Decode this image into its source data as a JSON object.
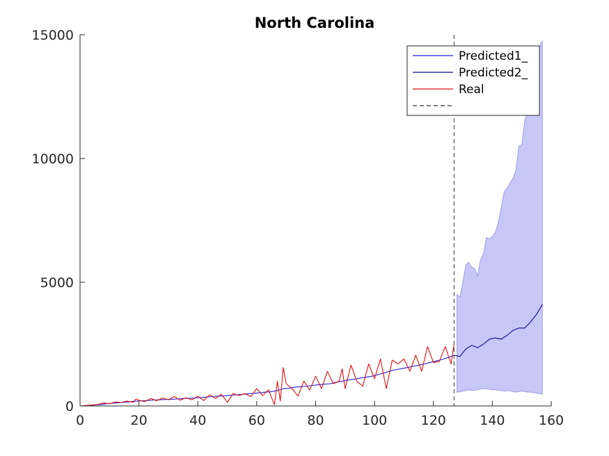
{
  "chart_data": {
    "type": "line",
    "title": "North Carolina",
    "xlabel": "",
    "ylabel": "",
    "xlim": [
      0,
      160
    ],
    "ylim": [
      0,
      15000
    ],
    "xticks": [
      "0",
      "20",
      "40",
      "60",
      "80",
      "100",
      "120",
      "140",
      "160"
    ],
    "yticks": [
      "0",
      "5000",
      "10000",
      "15000"
    ],
    "grid": false,
    "legend_position": "top-right",
    "vline_x": 127,
    "colors": {
      "predicted1": "#1f1fd6",
      "predicted2": "#0b0b8a",
      "real": "#e01010",
      "band_fill": "#c8c8f8",
      "band_edge": "#9a9ae6",
      "vline": "#333333"
    },
    "series": [
      {
        "name": "Predicted1_",
        "style": "line",
        "x": [
          1,
          3,
          5,
          7,
          9,
          11,
          13,
          15,
          17,
          19,
          21,
          23,
          25,
          27,
          29,
          31,
          33,
          35,
          37,
          39,
          41,
          43,
          45,
          47,
          49,
          51,
          53,
          55,
          57,
          59,
          61,
          63,
          65,
          67,
          69,
          71,
          73,
          75,
          77,
          79,
          81,
          83,
          85,
          87,
          89,
          91,
          93,
          95,
          97,
          99,
          101,
          103,
          105,
          107,
          109,
          111,
          113,
          115,
          117,
          119,
          121,
          123,
          125,
          127
        ],
        "values": [
          10,
          20,
          40,
          60,
          90,
          110,
          130,
          150,
          170,
          190,
          210,
          220,
          240,
          250,
          260,
          270,
          280,
          300,
          310,
          320,
          340,
          360,
          380,
          400,
          410,
          430,
          450,
          470,
          490,
          510,
          530,
          560,
          580,
          620,
          700,
          720,
          760,
          780,
          800,
          830,
          860,
          880,
          900,
          960,
          1000,
          1050,
          1080,
          1120,
          1160,
          1200,
          1260,
          1320,
          1400,
          1460,
          1500,
          1550,
          1600,
          1650,
          1700,
          1760,
          1820,
          1880,
          1960,
          2050
        ]
      },
      {
        "name": "Predicted2_",
        "style": "line",
        "x": [
          127,
          129,
          131,
          133,
          135,
          137,
          139,
          141,
          143,
          145,
          147,
          149,
          151,
          153,
          155,
          157
        ],
        "values": [
          2050,
          2000,
          2300,
          2450,
          2350,
          2500,
          2700,
          2750,
          2700,
          2850,
          3050,
          3150,
          3150,
          3400,
          3700,
          4100
        ]
      },
      {
        "name": "Real",
        "style": "line",
        "x": [
          0,
          2,
          4,
          6,
          8,
          10,
          12,
          14,
          16,
          18,
          19,
          20,
          22,
          24,
          26,
          28,
          30,
          32,
          34,
          36,
          38,
          40,
          42,
          44,
          46,
          48,
          50,
          52,
          54,
          56,
          58,
          60,
          62,
          64,
          66,
          67,
          68,
          69,
          70,
          72,
          74,
          76,
          78,
          80,
          82,
          84,
          86,
          88,
          89,
          90,
          92,
          94,
          96,
          98,
          100,
          102,
          104,
          106,
          108,
          110,
          112,
          114,
          116,
          118,
          120,
          122,
          124,
          126,
          127
        ],
        "values": [
          0,
          20,
          40,
          60,
          120,
          90,
          160,
          140,
          200,
          150,
          280,
          230,
          170,
          300,
          210,
          320,
          250,
          380,
          230,
          330,
          250,
          400,
          220,
          450,
          300,
          480,
          150,
          500,
          420,
          500,
          380,
          700,
          420,
          650,
          50,
          1000,
          200,
          1550,
          900,
          700,
          400,
          1000,
          650,
          1200,
          700,
          1400,
          900,
          1000,
          1500,
          700,
          1650,
          1000,
          800,
          1700,
          1100,
          1900,
          700,
          1850,
          1700,
          1900,
          1400,
          2050,
          1400,
          2400,
          1750,
          1800,
          2400,
          1700,
          2500
        ]
      }
    ],
    "uncertainty_band": {
      "x": [
        128,
        129,
        130,
        131,
        132,
        133,
        134,
        135,
        136,
        137,
        138,
        139,
        140,
        141,
        142,
        143,
        144,
        145,
        146,
        147,
        148,
        149,
        150,
        151,
        152,
        153,
        154,
        155,
        156,
        157
      ],
      "upper": [
        4500,
        4400,
        5000,
        5700,
        5800,
        5600,
        5550,
        5250,
        5900,
        6150,
        6800,
        6750,
        6850,
        7000,
        7400,
        8000,
        8650,
        8800,
        9000,
        9200,
        9500,
        10500,
        10550,
        11500,
        12000,
        13500,
        14000,
        14300,
        14500,
        14750
      ],
      "lower": [
        550,
        580,
        600,
        620,
        650,
        640,
        630,
        660,
        680,
        700,
        690,
        680,
        650,
        660,
        640,
        620,
        600,
        610,
        620,
        580,
        560,
        590,
        600,
        580,
        560,
        560,
        540,
        520,
        500,
        480
      ]
    },
    "legend": [
      {
        "label": "Predicted1_",
        "color_key": "predicted1",
        "dash": false
      },
      {
        "label": "Predicted2_",
        "color_key": "predicted2",
        "dash": false
      },
      {
        "label": "Real",
        "color_key": "real",
        "dash": false
      },
      {
        "label": "",
        "color_key": "vline",
        "dash": true
      }
    ]
  }
}
